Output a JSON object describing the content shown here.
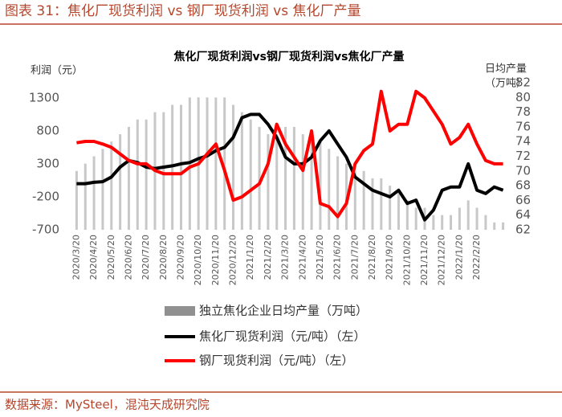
{
  "header": "图表 31：焦化厂现货利润 vs 钢厂现货利润 vs 焦化厂产量",
  "source": "数据来源：MySteel，混沌天成研究院",
  "chart_data": {
    "type": "combo",
    "title": "焦化厂现货利润vs钢厂现货利润vs焦化厂产量",
    "y_label": "利润（元）",
    "y2_label": [
      "日均产量",
      "（万吨）"
    ],
    "categories": [
      "2020/3/20",
      null,
      "2020/4/20",
      null,
      "2020/5/20",
      null,
      "2020/6/20",
      null,
      "2020/7/20",
      null,
      "2020/8/20",
      null,
      "2020/9/20",
      null,
      "2020/10/20",
      null,
      "2020/11/20",
      null,
      "2020/12/20",
      null,
      "2021/1/20",
      null,
      "2021/2/20",
      null,
      "2021/3/20",
      null,
      "2021/4/20",
      null,
      "2021/5/20",
      null,
      "2021/6/20",
      null,
      "2021/7/20",
      null,
      "2021/8/20",
      null,
      "2021/9/20",
      null,
      "2021/10/20",
      null,
      "2021/11/20",
      null,
      "2021/12/20",
      null,
      "2022/1/20",
      null,
      "2022/2/20",
      null,
      null,
      null
    ],
    "ylim": [
      -700,
      1530
    ],
    "yticks": [
      -700,
      -200,
      300,
      800,
      1300
    ],
    "y2lim": [
      62,
      82
    ],
    "y2ticks": [
      62,
      64,
      66,
      68,
      70,
      72,
      74,
      76,
      78,
      80,
      82
    ],
    "series": [
      {
        "name": "独立焦化企业日均产量（万吨）",
        "kind": "bar",
        "axis": "y2",
        "color": "#c8c8c8",
        "values": [
          70,
          71,
          72,
          73,
          74,
          75,
          76,
          77,
          77,
          78,
          78,
          79,
          79,
          80,
          80,
          80,
          80,
          80,
          79,
          78,
          77,
          76,
          75,
          75,
          76,
          76,
          75,
          74,
          74,
          73,
          72,
          71,
          70,
          70,
          69,
          69,
          68,
          67,
          66,
          65,
          65,
          64,
          64,
          64,
          65,
          66,
          65,
          64,
          63,
          63
        ]
      },
      {
        "name": "焦化厂现货利润（元/吨）（左）",
        "kind": "line",
        "color": "#000000",
        "values": [
          0,
          0,
          20,
          30,
          100,
          250,
          350,
          320,
          250,
          230,
          250,
          270,
          300,
          320,
          380,
          420,
          500,
          550,
          700,
          1000,
          1050,
          1050,
          900,
          700,
          400,
          300,
          300,
          400,
          650,
          800,
          600,
          400,
          100,
          0,
          -100,
          -150,
          -200,
          -100,
          -300,
          -250,
          -550,
          -400,
          -100,
          -50,
          -50,
          300,
          -100,
          -150,
          -50,
          -100
        ]
      },
      {
        "name": "钢厂现货利润（元/吨）（左）",
        "kind": "line",
        "color": "#ff0000",
        "values": [
          620,
          640,
          640,
          600,
          550,
          450,
          350,
          300,
          300,
          200,
          150,
          150,
          150,
          250,
          300,
          450,
          600,
          200,
          -250,
          -200,
          -100,
          0,
          300,
          900,
          600,
          400,
          200,
          800,
          -300,
          -350,
          -500,
          -300,
          300,
          500,
          600,
          1400,
          800,
          900,
          900,
          1400,
          1300,
          1100,
          900,
          600,
          700,
          900,
          600,
          350,
          300,
          300
        ]
      }
    ]
  }
}
